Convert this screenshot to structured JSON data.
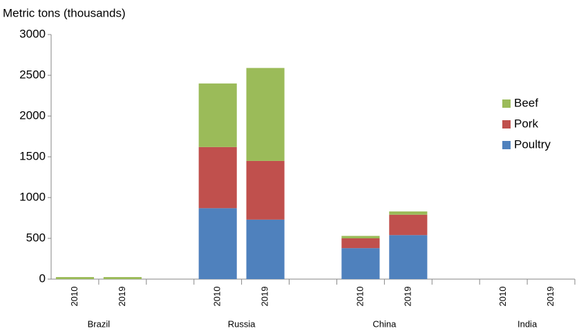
{
  "chart_data": {
    "type": "stacked-bar",
    "y_label": "Metric tons (thousands)",
    "categories": [
      "2010",
      "2019",
      null,
      "2010",
      "2019",
      null,
      "2010",
      "2019",
      null,
      "2010",
      "2019"
    ],
    "groups": [
      "Brazil",
      "Russia",
      "China",
      "India"
    ],
    "series": [
      {
        "name": "Poultry",
        "color": "#4f81bd",
        "values": [
          0,
          0,
          null,
          870,
          730,
          null,
          380,
          540,
          null,
          0,
          0
        ]
      },
      {
        "name": "Pork",
        "color": "#c0504d",
        "values": [
          0,
          0,
          null,
          750,
          720,
          null,
          120,
          250,
          null,
          0,
          0
        ]
      },
      {
        "name": "Beef",
        "color": "#9bbb59",
        "values": [
          25,
          25,
          null,
          780,
          1140,
          null,
          30,
          40,
          null,
          0,
          0
        ]
      }
    ],
    "ylim": [
      0,
      3000
    ],
    "yticks": [
      0,
      500,
      1000,
      1500,
      2000,
      2500,
      3000
    ],
    "grid": false,
    "legend": "right"
  }
}
